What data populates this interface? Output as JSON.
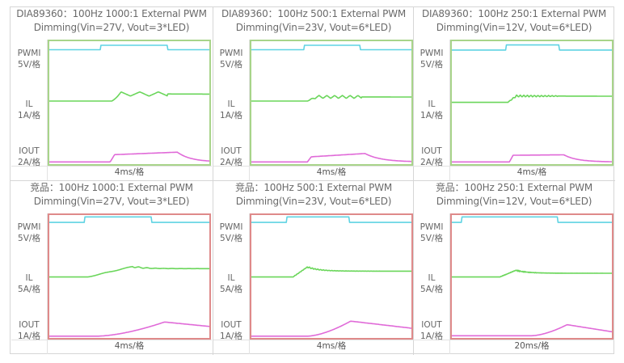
{
  "chart_data": [
    {
      "type": "line",
      "title": "DIA89360：100Hz 1000:1 External PWM",
      "subtitle": "Dimming(Vin=27V, Vout=3*LED)",
      "xlabel": "4ms/格",
      "border_color": "#a8d48a",
      "channels": [
        {
          "label": "PWMI",
          "scale": "5V/格",
          "color": "#5fd3e3",
          "shape": "square",
          "base": 0.23,
          "high": 0.11,
          "rise": 0.32,
          "fall": 0.74
        },
        {
          "label": "IL",
          "scale": "1A/格",
          "color": "#6ad65a",
          "shape": "ripple",
          "base": 0.55,
          "plateau": 0.38,
          "rise": 0.39,
          "settle": 0.74,
          "ripples": 3,
          "ripple_amp": 0.05,
          "overshoot": 0.0
        },
        {
          "label": "IOUT",
          "scale": "2A/格",
          "color": "#e06ad8",
          "shape": "sag",
          "base": 0.95,
          "start": 0.79,
          "end": 0.73,
          "rise": 0.38,
          "fall": 0.8,
          "decay": 0.1
        }
      ]
    },
    {
      "type": "line",
      "title": "DIA89360：100Hz 500:1 External PWM",
      "subtitle": "Dimming(Vin=23V, Vout=6*LED)",
      "xlabel": "4ms/格",
      "border_color": "#a8d48a",
      "channels": [
        {
          "label": "PWMI",
          "scale": "5V/格",
          "color": "#5fd3e3",
          "shape": "square",
          "base": 0.23,
          "high": 0.11,
          "rise": 0.33,
          "fall": 0.68
        },
        {
          "label": "IL",
          "scale": "1A/格",
          "color": "#6ad65a",
          "shape": "ripple",
          "base": 0.55,
          "plateau": 0.45,
          "rise": 0.35,
          "settle": 0.69,
          "ripples": 7,
          "ripple_amp": 0.035,
          "overshoot": 0.0
        },
        {
          "label": "IOUT",
          "scale": "2A/格",
          "color": "#e06ad8",
          "shape": "sag",
          "base": 0.95,
          "start": 0.84,
          "end": 0.76,
          "rise": 0.35,
          "fall": 0.71,
          "decay": 0.12
        }
      ]
    },
    {
      "type": "line",
      "title": "DIA89360：100Hz 250:1 External PWM",
      "subtitle": "Dimming(Vin=12V, Vout=6*LED)",
      "xlabel": "4ms/格",
      "border_color": "#a8d48a",
      "channels": [
        {
          "label": "PWMI",
          "scale": "5V/格",
          "color": "#5fd3e3",
          "shape": "square",
          "base": 0.24,
          "high": 0.1,
          "rise": 0.34,
          "fall": 0.67
        },
        {
          "label": "IL",
          "scale": "1A/格",
          "color": "#6ad65a",
          "shape": "ripple",
          "base": 0.58,
          "plateau": 0.43,
          "rise": 0.35,
          "settle": 0.66,
          "ripples": 14,
          "ripple_amp": 0.03,
          "overshoot": 0.0
        },
        {
          "label": "IOUT",
          "scale": "2A/格",
          "color": "#e06ad8",
          "shape": "sag",
          "base": 0.95,
          "start": 0.8,
          "end": 0.79,
          "rise": 0.36,
          "fall": 0.7,
          "decay": 0.1
        }
      ]
    },
    {
      "type": "line",
      "title": "竞品：100Hz 1000:1 External PWM",
      "subtitle": "Dimming(Vin=27V, Vout=3*LED)",
      "xlabel": "4ms/格",
      "border_color": "#df8a8a",
      "channels": [
        {
          "label": "PWMI",
          "scale": "5V/格",
          "color": "#5fd3e3",
          "shape": "square",
          "base": 0.2,
          "high": 0.05,
          "rise": 0.22,
          "fall": 0.64
        },
        {
          "label": "IL",
          "scale": "5A/格",
          "color": "#6ad65a",
          "shape": "ramp",
          "base": 0.6,
          "plateau": 0.4,
          "rise": 0.24,
          "peak_t": 0.52,
          "peak": 0.35,
          "ripples": 2
        },
        {
          "label": "IOUT",
          "scale": "1A/格",
          "color": "#e06ad8",
          "shape": "hump",
          "base": 0.96,
          "peak": 0.64,
          "rise": 0.3,
          "peak_t": 0.72,
          "end": 0.74
        }
      ]
    },
    {
      "type": "line",
      "title": "竞品：100Hz 500:1 External PWM",
      "subtitle": "Dimming(Vin=23V, Vout=6*LED)",
      "xlabel": "4ms/格",
      "border_color": "#df8a8a",
      "channels": [
        {
          "label": "PWMI",
          "scale": "5V/格",
          "color": "#5fd3e3",
          "shape": "square",
          "base": 0.2,
          "high": 0.05,
          "rise": 0.22,
          "fall": 0.61
        },
        {
          "label": "IL",
          "scale": "5A/格",
          "color": "#6ad65a",
          "shape": "ramp",
          "base": 0.6,
          "plateau": 0.46,
          "rise": 0.26,
          "peak_t": 0.35,
          "peak": 0.36,
          "ripples": 6
        },
        {
          "label": "IOUT",
          "scale": "1A/格",
          "color": "#e06ad8",
          "shape": "hump",
          "base": 0.96,
          "peak": 0.62,
          "rise": 0.35,
          "peak_t": 0.62,
          "end": 0.78
        }
      ]
    },
    {
      "type": "line",
      "title": "竞品：100Hz 250:1 External PWM",
      "subtitle": "Dimming(Vin=12V, Vout=6*LED)",
      "xlabel": "20ms/格",
      "border_color": "#df8a8a",
      "channels": [
        {
          "label": "PWMI",
          "scale": "5V/格",
          "color": "#5fd3e3",
          "shape": "square",
          "base": 0.2,
          "high": 0.05,
          "rise": 0.06,
          "fall": 0.66
        },
        {
          "label": "IL",
          "scale": "5A/格",
          "color": "#6ad65a",
          "shape": "ramp",
          "base": 0.6,
          "plateau": 0.51,
          "rise": 0.3,
          "peak_t": 0.4,
          "peak": 0.44,
          "ripples": 10
        },
        {
          "label": "IOUT",
          "scale": "1A/格",
          "color": "#e06ad8",
          "shape": "hump",
          "base": 0.95,
          "peak": 0.7,
          "rise": 0.5,
          "peak_t": 0.72,
          "end": 0.86
        }
      ]
    }
  ]
}
